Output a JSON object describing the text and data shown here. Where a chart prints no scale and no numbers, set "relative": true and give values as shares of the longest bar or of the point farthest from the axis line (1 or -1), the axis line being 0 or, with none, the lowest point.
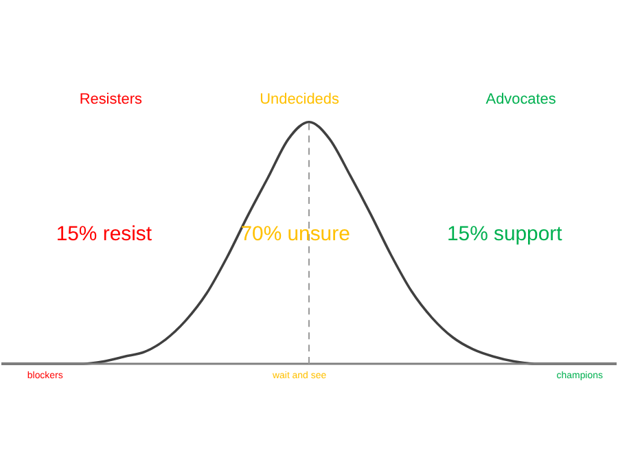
{
  "chart_data": {
    "type": "line",
    "relative": true,
    "categories": [
      null,
      null,
      null,
      null,
      null,
      null,
      null,
      null,
      null,
      null,
      null,
      null,
      null,
      null,
      null,
      null,
      null,
      null,
      null,
      null,
      null,
      null,
      null,
      null,
      null,
      null,
      null,
      null,
      null,
      null,
      null
    ],
    "series": [
      {
        "color": "#404040",
        "values": [
          0,
          0,
          0,
          0,
          0,
          0.01,
          0.03,
          0.05,
          0.1,
          0.18,
          0.29,
          0.44,
          0.61,
          0.77,
          0.93,
          1,
          0.93,
          0.78,
          0.62,
          0.45,
          0.3,
          0.19,
          0.11,
          0.06,
          0.03,
          0.01,
          0,
          0,
          0,
          0,
          0
        ]
      }
    ],
    "ref_lines": [
      {
        "axis": "x",
        "color": "#999999",
        "line_style": "dashed"
      }
    ],
    "annotations": [
      "Resisters",
      "Undecideds",
      "Advocates",
      "15% resist",
      "70% unsure",
      "15% support",
      "blockers",
      "wait and see",
      "champions"
    ],
    "marker": "none",
    "line_style": "solid"
  }
}
